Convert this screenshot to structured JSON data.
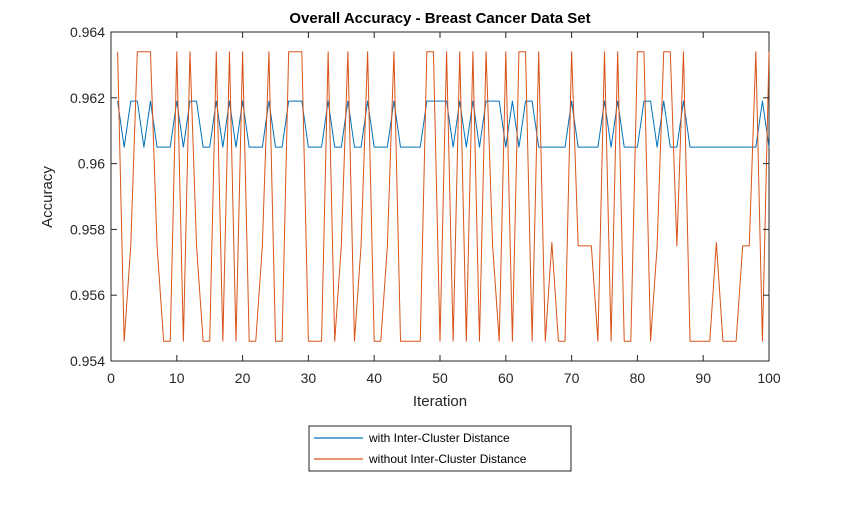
{
  "colors": {
    "series_with": "#0072BD",
    "series_without": "#D95319",
    "axis": "#262626",
    "background": "#ffffff"
  },
  "chart_data": {
    "type": "line",
    "title": "Overall Accuracy - Breast Cancer Data Set",
    "xlabel": "Iteration",
    "ylabel": "Accuracy",
    "xlim": [
      0,
      100
    ],
    "ylim": [
      0.954,
      0.964
    ],
    "xticks": [
      "0",
      "10",
      "20",
      "30",
      "40",
      "50",
      "60",
      "70",
      "80",
      "90",
      "100"
    ],
    "yticks": [
      "0.954",
      "0.956",
      "0.958",
      "0.96",
      "0.962",
      "0.964"
    ],
    "grid": false,
    "legend_position": "bottom-center",
    "x": [
      1,
      2,
      3,
      4,
      5,
      6,
      7,
      8,
      9,
      10,
      11,
      12,
      13,
      14,
      15,
      16,
      17,
      18,
      19,
      20,
      21,
      22,
      23,
      24,
      25,
      26,
      27,
      28,
      29,
      30,
      31,
      32,
      33,
      34,
      35,
      36,
      37,
      38,
      39,
      40,
      41,
      42,
      43,
      44,
      45,
      46,
      47,
      48,
      49,
      50,
      51,
      52,
      53,
      54,
      55,
      56,
      57,
      58,
      59,
      60,
      61,
      62,
      63,
      64,
      65,
      66,
      67,
      68,
      69,
      70,
      71,
      72,
      73,
      74,
      75,
      76,
      77,
      78,
      79,
      80,
      81,
      82,
      83,
      84,
      85,
      86,
      87,
      88,
      89,
      90,
      91,
      92,
      93,
      94,
      95,
      96,
      97,
      98,
      99,
      100
    ],
    "series": [
      {
        "name": "with Inter-Cluster Distance",
        "color": "#0072BD",
        "values": [
          0.9619,
          0.9605,
          0.9619,
          0.9619,
          0.9605,
          0.9619,
          0.9605,
          0.9605,
          0.9605,
          0.9619,
          0.9605,
          0.9619,
          0.9619,
          0.9605,
          0.9605,
          0.9619,
          0.9605,
          0.9619,
          0.9605,
          0.9619,
          0.9605,
          0.9605,
          0.9605,
          0.9619,
          0.9605,
          0.9605,
          0.9619,
          0.9619,
          0.9619,
          0.9605,
          0.9605,
          0.9605,
          0.9619,
          0.9605,
          0.9605,
          0.9619,
          0.9605,
          0.9605,
          0.9619,
          0.9605,
          0.9605,
          0.9605,
          0.9619,
          0.9605,
          0.9605,
          0.9605,
          0.9605,
          0.9619,
          0.9619,
          0.9619,
          0.9619,
          0.9605,
          0.9619,
          0.9605,
          0.9619,
          0.9605,
          0.9619,
          0.9619,
          0.9619,
          0.9605,
          0.9619,
          0.9605,
          0.9619,
          0.9619,
          0.9605,
          0.9605,
          0.9605,
          0.9605,
          0.9605,
          0.9619,
          0.9605,
          0.9605,
          0.9605,
          0.9605,
          0.9619,
          0.9605,
          0.9619,
          0.9605,
          0.9605,
          0.9605,
          0.9619,
          0.9619,
          0.9605,
          0.9619,
          0.9605,
          0.9605,
          0.9619,
          0.9605,
          0.9605,
          0.9605,
          0.9605,
          0.9605,
          0.9605,
          0.9605,
          0.9605,
          0.9605,
          0.9605,
          0.9605,
          0.9619,
          0.9605
        ]
      },
      {
        "name": "without Inter-Cluster Distance",
        "color": "#D95319",
        "values": [
          0.9634,
          0.9546,
          0.9575,
          0.9634,
          0.9634,
          0.9634,
          0.9575,
          0.9546,
          0.9546,
          0.9634,
          0.9546,
          0.9634,
          0.9575,
          0.9546,
          0.9546,
          0.9634,
          0.9546,
          0.9634,
          0.9546,
          0.9634,
          0.9546,
          0.9546,
          0.9575,
          0.9634,
          0.9546,
          0.9546,
          0.9634,
          0.9634,
          0.9634,
          0.9546,
          0.9546,
          0.9546,
          0.9634,
          0.9546,
          0.9575,
          0.9634,
          0.9546,
          0.9575,
          0.9634,
          0.9546,
          0.9546,
          0.9575,
          0.9634,
          0.9546,
          0.9546,
          0.9546,
          0.9546,
          0.9634,
          0.9634,
          0.9546,
          0.9634,
          0.9546,
          0.9634,
          0.9546,
          0.9634,
          0.9546,
          0.9634,
          0.9575,
          0.9546,
          0.9634,
          0.9546,
          0.9634,
          0.9634,
          0.9546,
          0.9634,
          0.9546,
          0.9576,
          0.9546,
          0.9546,
          0.9634,
          0.9575,
          0.9575,
          0.9575,
          0.9546,
          0.9634,
          0.9546,
          0.9634,
          0.9546,
          0.9546,
          0.9634,
          0.9634,
          0.9546,
          0.9575,
          0.9634,
          0.9634,
          0.9575,
          0.9634,
          0.9546,
          0.9546,
          0.9546,
          0.9546,
          0.9576,
          0.9546,
          0.9546,
          0.9546,
          0.9575,
          0.9575,
          0.9634,
          0.9546,
          0.9634
        ]
      }
    ]
  }
}
